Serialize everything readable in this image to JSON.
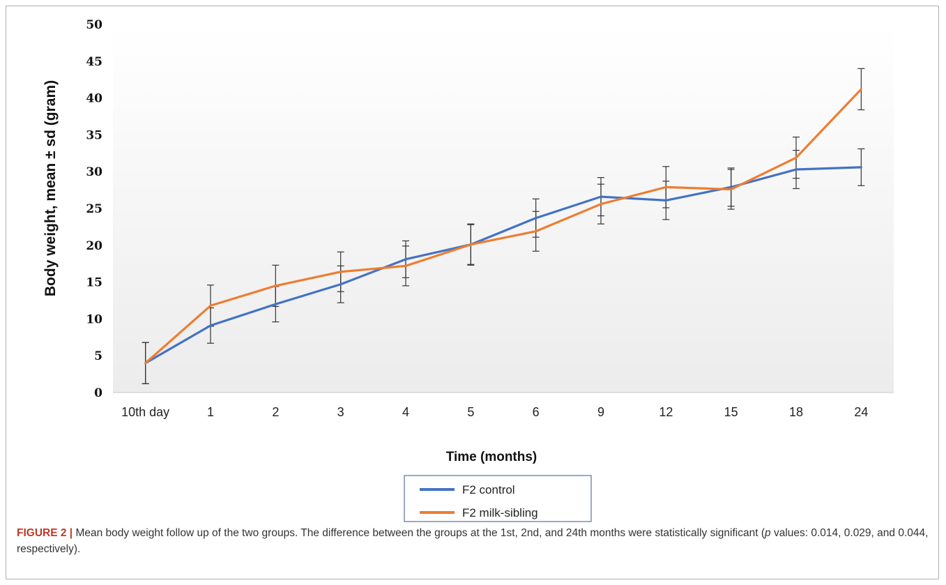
{
  "chart_data": {
    "type": "line",
    "categories": [
      "10th day",
      "1",
      "2",
      "3",
      "4",
      "5",
      "6",
      "9",
      "12",
      "15",
      "18",
      "24"
    ],
    "xlabel": "Time (months)",
    "ylabel": "Body weight, mean ± sd (gram)",
    "ylim": [
      0,
      50
    ],
    "yticks": [
      "0",
      "5",
      "10",
      "15",
      "20",
      "25",
      "30",
      "35",
      "40",
      "45",
      "50"
    ],
    "grid": false,
    "legend_position": "bottom-center",
    "series": [
      {
        "name": "F2 control",
        "color": "#4472c4",
        "values": [
          4.0,
          9.1,
          12.0,
          14.7,
          18.1,
          20.1,
          23.7,
          26.6,
          26.1,
          27.9,
          30.3,
          30.6
        ],
        "errors": [
          2.8,
          2.4,
          2.4,
          2.5,
          2.5,
          2.8,
          2.6,
          2.6,
          2.6,
          2.6,
          2.6,
          2.5
        ]
      },
      {
        "name": "F2 milk-sibling",
        "color": "#ed7d31",
        "values": [
          4.0,
          11.8,
          14.5,
          16.4,
          17.2,
          20.1,
          21.9,
          25.6,
          27.9,
          27.6,
          31.9,
          41.2
        ],
        "errors": [
          2.8,
          2.8,
          2.8,
          2.7,
          2.7,
          2.7,
          2.7,
          2.7,
          2.8,
          2.7,
          2.8,
          2.8
        ]
      }
    ]
  },
  "caption": {
    "label": "FIGURE 2 |",
    "text_1": " Mean body weight follow up of the two groups. The difference between the groups at the 1st, 2nd, and 24th months were statistically significant (",
    "p_symbol": "p",
    "text_2": " values: 0.014, 0.029, and 0.044, respectively)."
  }
}
